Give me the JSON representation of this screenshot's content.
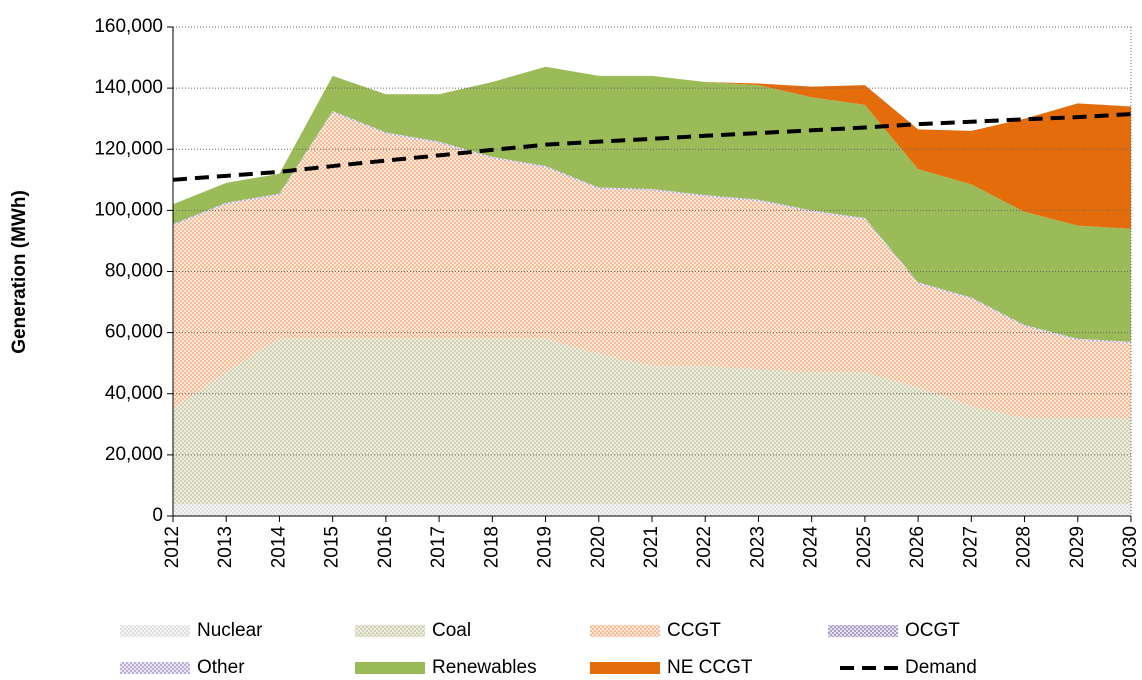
{
  "chart_data": {
    "type": "stacked_area",
    "y_label": "Generation (MWh)",
    "categories": [
      "2012",
      "2013",
      "2014",
      "2015",
      "2016",
      "2017",
      "2018",
      "2019",
      "2020",
      "2021",
      "2022",
      "2023",
      "2024",
      "2025",
      "2026",
      "2027",
      "2028",
      "2029",
      "2030"
    ],
    "series": [
      {
        "name": "Nuclear",
        "color": "#d9d9d9",
        "values": [
          4000,
          4000,
          4000,
          4000,
          4000,
          4000,
          4000,
          4000,
          4000,
          4000,
          4000,
          4000,
          4000,
          4000,
          4000,
          4000,
          4000,
          4000,
          4000
        ]
      },
      {
        "name": "Coal",
        "color": "#c4c49a",
        "values": [
          31000,
          43000,
          54000,
          54000,
          54000,
          54000,
          54000,
          54000,
          49000,
          45000,
          45000,
          44000,
          43000,
          43000,
          38000,
          32000,
          28000,
          28000,
          28000
        ]
      },
      {
        "name": "CCGT",
        "color": "#f5a878",
        "values": [
          60000,
          55000,
          47000,
          74000,
          67000,
          64000,
          59000,
          56000,
          54000,
          57500,
          55500,
          55000,
          52500,
          50000,
          34000,
          35000,
          30000,
          25500,
          24500
        ]
      },
      {
        "name": "OCGT",
        "color": "#a896c8",
        "values": [
          200,
          200,
          200,
          200,
          200,
          200,
          200,
          200,
          200,
          200,
          200,
          200,
          200,
          200,
          200,
          200,
          200,
          200,
          200
        ]
      },
      {
        "name": "Other",
        "color": "#b8a8d0",
        "values": [
          300,
          300,
          300,
          300,
          300,
          300,
          300,
          300,
          300,
          300,
          300,
          300,
          300,
          300,
          300,
          300,
          300,
          300,
          300
        ]
      },
      {
        "name": "Renewables",
        "color": "#9bbb59",
        "values": [
          6500,
          6500,
          6500,
          11500,
          12500,
          15500,
          24500,
          32500,
          36500,
          37000,
          37000,
          37500,
          37000,
          37000,
          37000,
          37000,
          37000,
          37000,
          37000
        ]
      },
      {
        "name": "NE CCGT",
        "color": "#e46c0a",
        "values": [
          0,
          0,
          0,
          0,
          0,
          0,
          0,
          0,
          0,
          0,
          0,
          500,
          3500,
          6500,
          13000,
          17500,
          30500,
          40000,
          40000
        ]
      },
      {
        "name": "Demand",
        "color": "#000000",
        "type": "line",
        "values": [
          110000,
          111300,
          112600,
          114500,
          116300,
          118000,
          119800,
          121500,
          122500,
          123400,
          124400,
          125300,
          126200,
          127100,
          128200,
          129000,
          129800,
          130500,
          131500
        ]
      }
    ],
    "ylim": [
      0,
      160000
    ],
    "yticks": [
      {
        "value": 0,
        "label": "0"
      },
      {
        "value": 20000,
        "label": "20,000"
      },
      {
        "value": 40000,
        "label": "40,000"
      },
      {
        "value": 60000,
        "label": "60,000"
      },
      {
        "value": 80000,
        "label": "80,000"
      },
      {
        "value": 100000,
        "label": "100,000"
      },
      {
        "value": 120000,
        "label": "120,000"
      },
      {
        "value": 140000,
        "label": "140,000"
      },
      {
        "value": 160000,
        "label": "160,000"
      }
    ],
    "grid": true,
    "legend": "bottom"
  }
}
